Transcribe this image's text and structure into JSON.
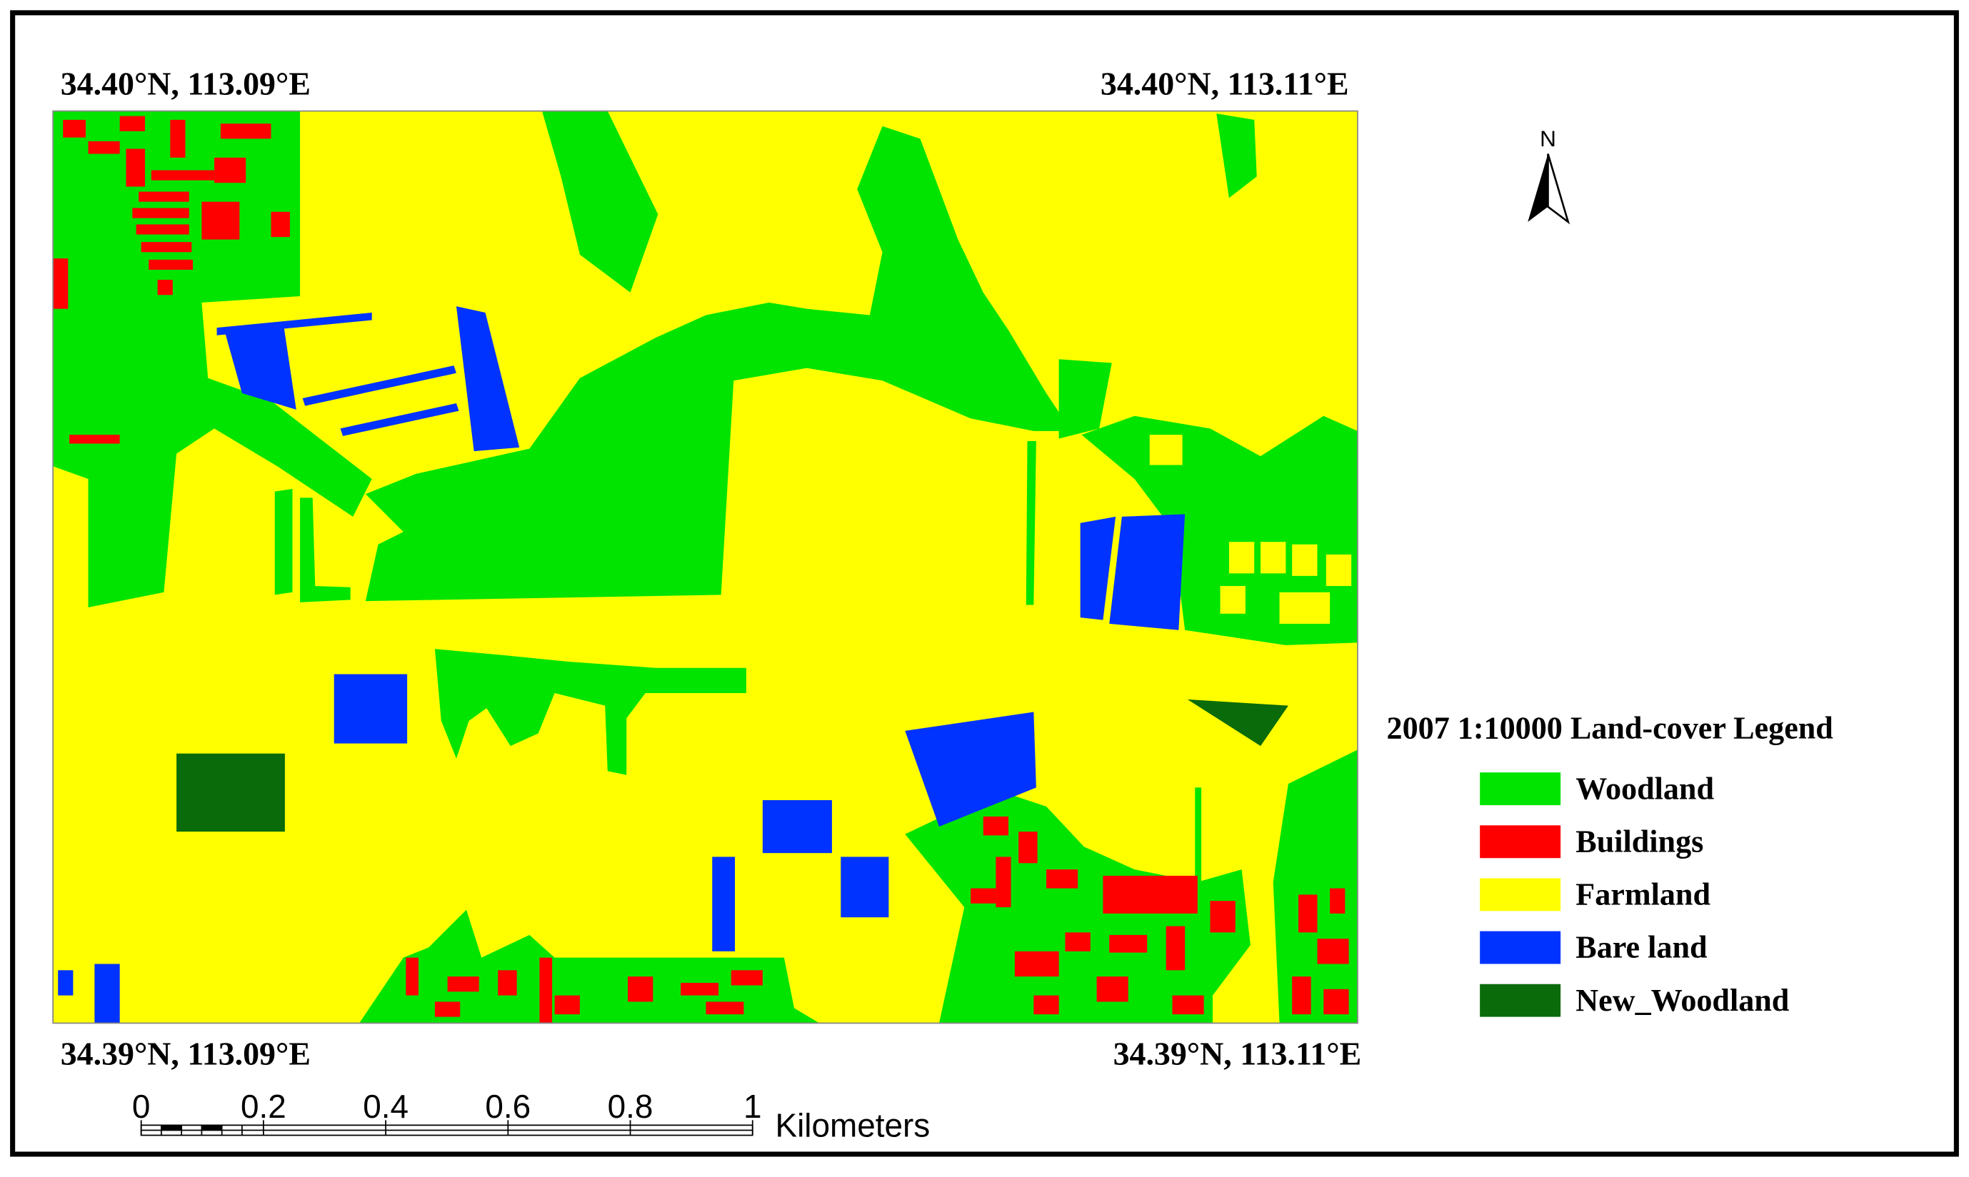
{
  "corners": {
    "top_left": "34.40°N, 113.09°E",
    "top_right": "34.40°N, 113.11°E",
    "bottom_left": "34.39°N, 113.09°E",
    "bottom_right": "34.39°N, 113.11°E"
  },
  "north_label": "N",
  "legend": {
    "title": "2007  1:10000 Land-cover  Legend",
    "items": [
      "Woodland",
      "Buildings",
      "Farmland",
      "Bare land",
      "New_Woodland"
    ]
  },
  "scale_bar": {
    "labels": [
      "0",
      "0.2",
      "0.4",
      "0.6",
      "0.8",
      "1"
    ],
    "unit": "Kilometers"
  }
}
